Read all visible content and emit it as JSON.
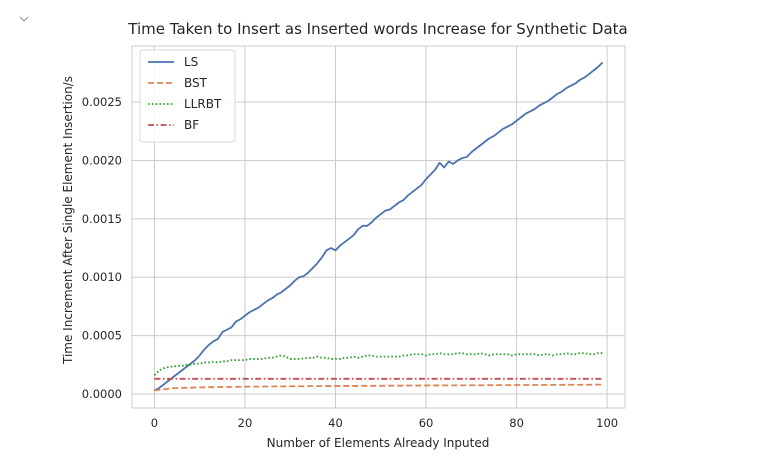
{
  "output_cell": {
    "collapse_icon": "chevron-down-icon"
  },
  "chart_data": {
    "type": "line",
    "title": "Time Taken to Insert as Inserted words Increase for Synthetic Data",
    "xlabel": "Number of Elements Already Inputed",
    "ylabel": "Time Increment After Single Element Insertion/s",
    "xlim": [
      -4.95,
      103.95
    ],
    "ylim": [
      -0.00012,
      0.00298
    ],
    "xticks": [
      0,
      20,
      40,
      60,
      80,
      100
    ],
    "xtick_labels": [
      "0",
      "20",
      "40",
      "60",
      "80",
      "100"
    ],
    "yticks": [
      0.0,
      0.0005,
      0.001,
      0.0015,
      0.002,
      0.0025
    ],
    "ytick_labels": [
      "0.0000",
      "0.0005",
      "0.0010",
      "0.0015",
      "0.0020",
      "0.0025"
    ],
    "grid": true,
    "legend_position": "top-left",
    "x": [
      0,
      1,
      2,
      3,
      4,
      5,
      6,
      7,
      8,
      9,
      10,
      11,
      12,
      13,
      14,
      15,
      16,
      17,
      18,
      19,
      20,
      21,
      22,
      23,
      24,
      25,
      26,
      27,
      28,
      29,
      30,
      31,
      32,
      33,
      34,
      35,
      36,
      37,
      38,
      39,
      40,
      41,
      42,
      43,
      44,
      45,
      46,
      47,
      48,
      49,
      50,
      51,
      52,
      53,
      54,
      55,
      56,
      57,
      58,
      59,
      60,
      61,
      62,
      63,
      64,
      65,
      66,
      67,
      68,
      69,
      70,
      71,
      72,
      73,
      74,
      75,
      76,
      77,
      78,
      79,
      80,
      81,
      82,
      83,
      84,
      85,
      86,
      87,
      88,
      89,
      90,
      91,
      92,
      93,
      94,
      95,
      96,
      97,
      98,
      99
    ],
    "series": [
      {
        "name": "LS",
        "color": "#4c72b0",
        "dash": "solid",
        "values": [
          3e-05,
          5e-05,
          8e-05,
          0.00011,
          0.00014,
          0.00017,
          0.0002,
          0.00023,
          0.00026,
          0.00029,
          0.00033,
          0.00038,
          0.00042,
          0.00045,
          0.00047,
          0.00053,
          0.00055,
          0.00057,
          0.00062,
          0.00064,
          0.00067,
          0.0007,
          0.00072,
          0.00074,
          0.00077,
          0.0008,
          0.00082,
          0.00085,
          0.00087,
          0.0009,
          0.00093,
          0.00097,
          0.001,
          0.00101,
          0.00104,
          0.00108,
          0.00112,
          0.00117,
          0.00123,
          0.00125,
          0.00123,
          0.00127,
          0.0013,
          0.00133,
          0.00136,
          0.00141,
          0.00144,
          0.00144,
          0.00147,
          0.00151,
          0.00154,
          0.00157,
          0.00158,
          0.00161,
          0.00164,
          0.00166,
          0.0017,
          0.00173,
          0.00176,
          0.00179,
          0.00184,
          0.00188,
          0.00192,
          0.00198,
          0.00194,
          0.00199,
          0.00197,
          0.002,
          0.00202,
          0.00203,
          0.00207,
          0.0021,
          0.00213,
          0.00216,
          0.00219,
          0.00221,
          0.00224,
          0.00227,
          0.00229,
          0.00231,
          0.00234,
          0.00237,
          0.0024,
          0.00242,
          0.00244,
          0.00247,
          0.00249,
          0.00251,
          0.00254,
          0.00257,
          0.00259,
          0.00262,
          0.00264,
          0.00266,
          0.00269,
          0.00271,
          0.00274,
          0.00277,
          0.0028,
          0.00284
        ]
      },
      {
        "name": "BST",
        "color": "#dd8452",
        "dash": "dashed",
        "values": [
          3e-05,
          3.5e-05,
          4e-05,
          4.5e-05,
          5e-05,
          5e-05,
          5.2e-05,
          5.3e-05,
          5.4e-05,
          5.5e-05,
          5.6e-05,
          5.7e-05,
          5.8e-05,
          5.8e-05,
          5.9e-05,
          6e-05,
          6e-05,
          6.1e-05,
          6.1e-05,
          6.2e-05,
          6.2e-05,
          6.3e-05,
          6.3e-05,
          6.3e-05,
          6.4e-05,
          6.4e-05,
          6.4e-05,
          6.5e-05,
          6.5e-05,
          6.5e-05,
          6.6e-05,
          6.6e-05,
          6.6e-05,
          6.6e-05,
          6.7e-05,
          6.7e-05,
          6.7e-05,
          6.7e-05,
          6.8e-05,
          6.8e-05,
          6.8e-05,
          6.8e-05,
          6.9e-05,
          6.9e-05,
          6.9e-05,
          6.9e-05,
          7e-05,
          7e-05,
          7e-05,
          7e-05,
          7e-05,
          7.1e-05,
          7.1e-05,
          7.1e-05,
          7.1e-05,
          7.2e-05,
          7.2e-05,
          7.2e-05,
          7.2e-05,
          7.3e-05,
          7.3e-05,
          7.3e-05,
          7.3e-05,
          7.3e-05,
          7.4e-05,
          7.4e-05,
          7.4e-05,
          7.4e-05,
          7.4e-05,
          7.5e-05,
          7.5e-05,
          7.5e-05,
          7.5e-05,
          7.5e-05,
          7.6e-05,
          7.6e-05,
          7.6e-05,
          7.6e-05,
          7.6e-05,
          7.7e-05,
          7.7e-05,
          7.7e-05,
          7.7e-05,
          7.7e-05,
          7.7e-05,
          7.8e-05,
          7.8e-05,
          7.8e-05,
          7.8e-05,
          7.8e-05,
          7.8e-05,
          7.9e-05,
          7.9e-05,
          7.9e-05,
          7.9e-05,
          7.9e-05,
          7.9e-05,
          8e-05,
          8e-05,
          8e-05
        ]
      },
      {
        "name": "LLRBT",
        "color": "#2ca02c",
        "dash": "dotted",
        "values": [
          0.00016,
          0.0002,
          0.00022,
          0.00023,
          0.000235,
          0.00024,
          0.00024,
          0.00025,
          0.00025,
          0.00026,
          0.00026,
          0.00027,
          0.00027,
          0.000275,
          0.00027,
          0.00028,
          0.00028,
          0.00029,
          0.00029,
          0.00029,
          0.00029,
          0.0003,
          0.0003,
          0.0003,
          0.0003,
          0.00031,
          0.00031,
          0.00032,
          0.00033,
          0.00032,
          0.0003,
          0.0003,
          0.0003,
          0.000305,
          0.00031,
          0.00031,
          0.00032,
          0.00031,
          0.00031,
          0.0003,
          0.0003,
          0.0003,
          0.00031,
          0.00031,
          0.00032,
          0.00031,
          0.00032,
          0.00033,
          0.00033,
          0.00032,
          0.00032,
          0.00032,
          0.00032,
          0.00032,
          0.00032,
          0.00033,
          0.00033,
          0.00034,
          0.00034,
          0.00034,
          0.00033,
          0.00034,
          0.00034,
          0.00035,
          0.00034,
          0.00034,
          0.00034,
          0.00035,
          0.00035,
          0.00034,
          0.00034,
          0.00034,
          0.00035,
          0.00034,
          0.00033,
          0.00034,
          0.00034,
          0.00034,
          0.00034,
          0.00033,
          0.00034,
          0.00034,
          0.00034,
          0.00034,
          0.00034,
          0.00033,
          0.00034,
          0.00034,
          0.00033,
          0.00034,
          0.00034,
          0.00035,
          0.00034,
          0.00034,
          0.00035,
          0.00035,
          0.00034,
          0.00034,
          0.00035,
          0.00035
        ]
      },
      {
        "name": "BF",
        "color": "#c44e52",
        "dash": "dashdot",
        "values": [
          0.00013,
          0.00013,
          0.00013,
          0.00013,
          0.00013,
          0.00013,
          0.00013,
          0.00013,
          0.00013,
          0.00013,
          0.00013,
          0.00013,
          0.00013,
          0.00013,
          0.00013,
          0.00013,
          0.00013,
          0.00013,
          0.00013,
          0.00013,
          0.00013,
          0.00013,
          0.00013,
          0.00013,
          0.00013,
          0.00013,
          0.00013,
          0.00013,
          0.00013,
          0.00013,
          0.00013,
          0.00013,
          0.00013,
          0.00013,
          0.00013,
          0.00013,
          0.00013,
          0.00013,
          0.00013,
          0.00013,
          0.00013,
          0.00013,
          0.00013,
          0.00013,
          0.00013,
          0.00013,
          0.00013,
          0.00013,
          0.00013,
          0.00013,
          0.00013,
          0.00013,
          0.00013,
          0.00013,
          0.00013,
          0.00013,
          0.00013,
          0.00013,
          0.00013,
          0.00013,
          0.00013,
          0.00013,
          0.00013,
          0.00013,
          0.00013,
          0.00013,
          0.00013,
          0.00013,
          0.00013,
          0.00013,
          0.00013,
          0.00013,
          0.00013,
          0.00013,
          0.00013,
          0.00013,
          0.00013,
          0.00013,
          0.00013,
          0.00013,
          0.00013,
          0.00013,
          0.00013,
          0.00013,
          0.00013,
          0.00013,
          0.00013,
          0.00013,
          0.00013,
          0.00013,
          0.00013,
          0.00013,
          0.00013,
          0.00013,
          0.00013,
          0.00013,
          0.00013,
          0.00013,
          0.00013,
          0.00013
        ]
      }
    ]
  }
}
